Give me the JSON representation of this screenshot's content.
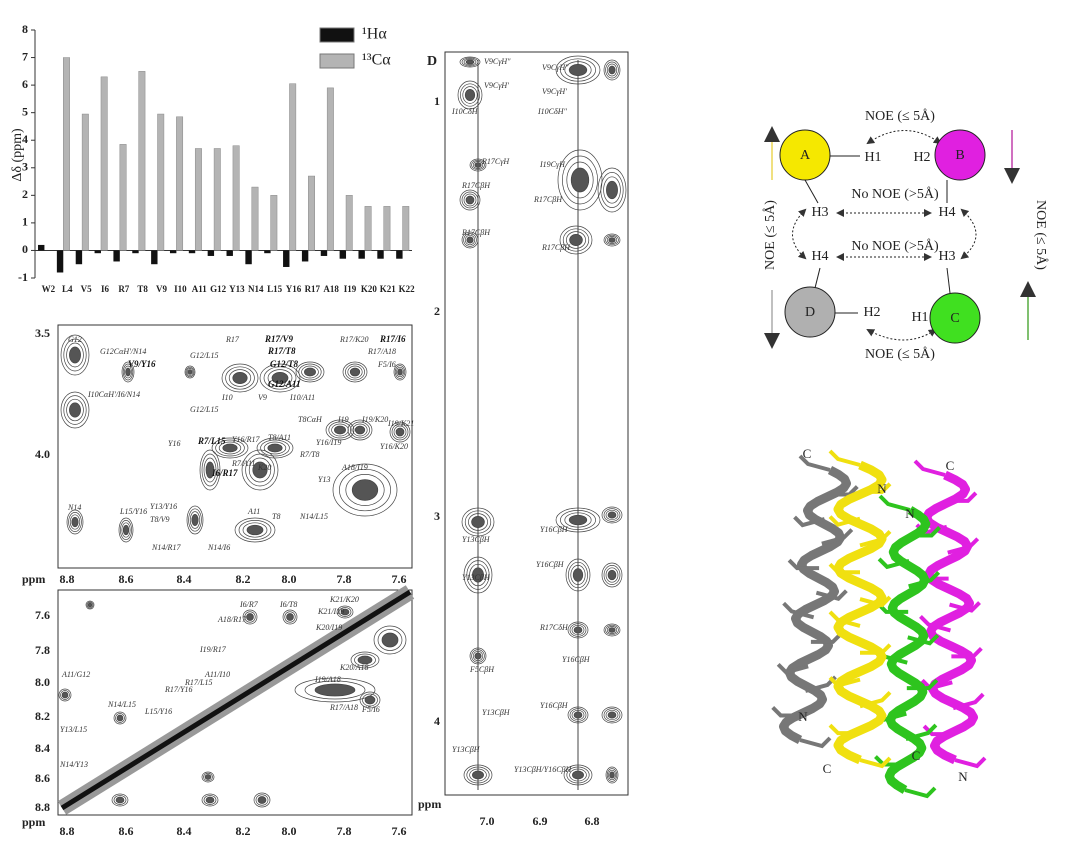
{
  "chart_data": {
    "type": "bar",
    "ylabel": "Δδ (ppm)",
    "categories": [
      "W2",
      "L4",
      "V5",
      "I6",
      "R7",
      "T8",
      "V9",
      "I10",
      "A11",
      "G12",
      "Y13",
      "N14",
      "L15",
      "Y16",
      "R17",
      "A18",
      "I19",
      "K20",
      "K21",
      "K22"
    ],
    "series": [
      {
        "name": "¹Hα",
        "color": "#111111",
        "values": [
          0.2,
          -0.8,
          -0.5,
          -0.1,
          -0.4,
          -0.1,
          -0.5,
          -0.1,
          -0.1,
          -0.2,
          -0.2,
          -0.5,
          -0.1,
          -0.6,
          -0.4,
          -0.2,
          -0.3,
          -0.3,
          -0.3,
          -0.3
        ]
      },
      {
        "name": "¹³Cα",
        "color": "#b4b4b4",
        "values": [
          0,
          7.0,
          4.95,
          6.3,
          3.85,
          6.5,
          4.95,
          4.85,
          3.7,
          3.7,
          3.8,
          2.3,
          2.0,
          6.05,
          2.7,
          5.9,
          2.0,
          1.6,
          1.6,
          1.6
        ]
      }
    ],
    "ylim": [
      -1,
      8
    ],
    "yticks": [
      -1,
      0,
      1,
      2,
      3,
      4,
      5,
      6,
      7,
      8
    ],
    "legend": "upper right"
  },
  "spectra": {
    "panel_b": {
      "axis_label": "ppm",
      "x_ticks": [
        "8.8",
        "8.6",
        "8.4",
        "8.2",
        "8.0",
        "7.8",
        "7.6"
      ],
      "y_ticks": [
        "3.5",
        "4.0"
      ],
      "peaks": [
        "G12",
        "G12CαH'/N14",
        "V9/Y16",
        "G12/L15",
        "R17",
        "R17/V9",
        "R17/T8",
        "G12/T8",
        "G12/A11",
        "R17/K20",
        "R17/I6",
        "R17/A18",
        "F5/I6",
        "I10CαH'/I6/N14",
        "G12/L15",
        "I10",
        "V9",
        "I10/A11",
        "T8CαH",
        "I19",
        "I19/K20",
        "I19/K21",
        "R7/L15",
        "Y16",
        "Y16/R17",
        "T8/A11",
        "Y16/I19",
        "Y16/K20",
        "R7/T8",
        "I6/R17",
        "R7/A11",
        "K20",
        "A18/I19",
        "Y13",
        "N14",
        "L15/Y16",
        "Y13/Y16",
        "T8/V9",
        "A11",
        "T8",
        "N14/L15",
        "N14/R17",
        "N14/I6"
      ]
    },
    "panel_c": {
      "axis_label": "ppm",
      "x_ticks": [
        "8.8",
        "8.6",
        "8.4",
        "8.2",
        "8.0",
        "7.8",
        "7.6"
      ],
      "y_ticks": [
        "7.6",
        "7.8",
        "8.0",
        "8.2",
        "8.4",
        "8.6",
        "8.8"
      ],
      "peaks": [
        "K21/K20",
        "I6/R7",
        "I6/T8",
        "K21/I19",
        "A18/R17",
        "K20/I19",
        "I19/R17",
        "K20/A18",
        "I19/A18",
        "A11/I10",
        "R17/L15",
        "R17/Y16",
        "L15/Y16",
        "A11/G12",
        "N14/L15",
        "Y13/L15",
        "N14/Y13",
        "R17/A18",
        "F5/I6"
      ]
    },
    "panel_d": {
      "letter": "D",
      "axis_label": "ppm",
      "x_ticks": [
        "7.0",
        "6.9",
        "6.8"
      ],
      "y_ticks": [
        "1",
        "2",
        "3",
        "4"
      ],
      "peaks": [
        "V9CγH″",
        "V9CγH′",
        "I10CδH",
        "R17CγH",
        "R17CβH",
        "R17CβH",
        "V9CγH″",
        "V9CγH′",
        "I10CδH″",
        "I19CγH",
        "R17CβH",
        "R17CβH",
        "Y13CβH",
        "Y13CβH",
        "F5CβH",
        "Y13CβH",
        "Y13CβH",
        "Y16CβH",
        "Y16CβH",
        "R17CδH",
        "Y16CβH",
        "Y16CβH",
        "Y13CβH/Y16CβH"
      ]
    }
  },
  "diagram": {
    "nodes": [
      "A",
      "B",
      "C",
      "D"
    ],
    "protons": [
      "H1",
      "H2",
      "H3",
      "H4",
      "H4",
      "H3",
      "H2",
      "H1"
    ],
    "edges": [
      "NOE (≤ 5Å)",
      "No NOE (>5Å)",
      "No NOE (>5Å)",
      "NOE (≤ 5Å)",
      "NOE (≤ 5Å)",
      "NOE (≤ 5Å)"
    ]
  },
  "structure": {
    "labels": [
      "C",
      "N",
      "N",
      "C",
      "N",
      "C",
      "C",
      "N"
    ]
  }
}
